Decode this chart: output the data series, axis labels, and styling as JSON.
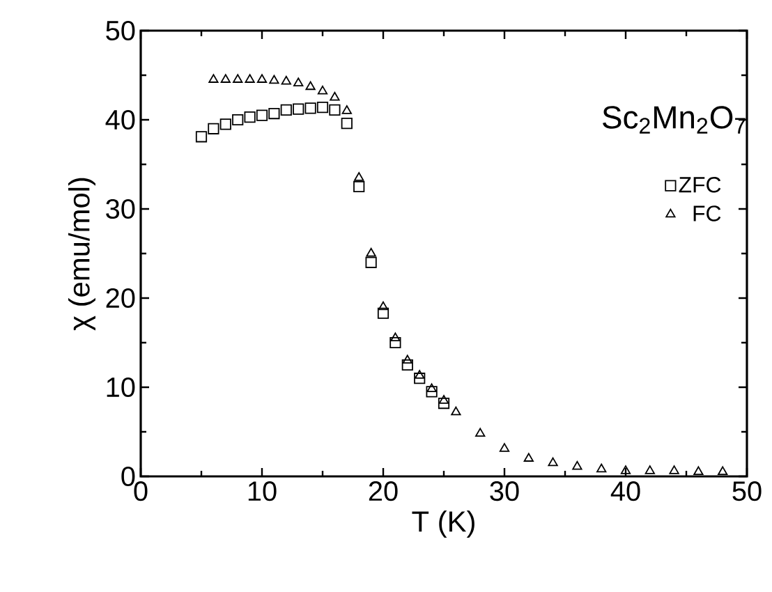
{
  "chart_data": {
    "type": "scatter",
    "xlabel": "T (K)",
    "ylabel": "χ (emu/mol)",
    "annotations": [
      "Sc$_{2}$Mn$_{2}$O$_{7}$"
    ],
    "xlim": [
      0,
      50
    ],
    "ylim": [
      0,
      50
    ],
    "xticks": [
      0,
      10,
      20,
      30,
      40,
      50
    ],
    "yticks": [
      0,
      10,
      20,
      30,
      40,
      50
    ],
    "legend": "right",
    "grid": false,
    "series": [
      {
        "name": "ZFC",
        "color": "#000000",
        "marker": "square",
        "x": [
          5,
          6,
          7,
          8,
          9,
          10,
          11,
          12,
          13,
          14,
          15,
          16,
          17,
          18,
          19,
          20,
          21,
          22,
          23,
          24,
          25
        ],
        "values": [
          38.1,
          39.0,
          39.5,
          40.0,
          40.3,
          40.5,
          40.7,
          41.1,
          41.2,
          41.3,
          41.4,
          41.1,
          39.6,
          32.5,
          24,
          18.3,
          15,
          12.5,
          11,
          9.5,
          8.2
        ]
      },
      {
        "name": "FC",
        "color": "#000000",
        "marker": "triangle",
        "x": [
          6,
          7,
          8,
          9,
          10,
          11,
          12,
          13,
          14,
          15,
          16,
          17,
          18,
          19,
          20,
          21,
          22,
          23,
          24,
          25,
          26,
          28,
          30,
          32,
          34,
          36,
          38,
          40,
          42,
          44,
          46,
          48
        ],
        "values": [
          44.5,
          44.5,
          44.5,
          44.5,
          44.5,
          44.4,
          44.3,
          44.1,
          43.7,
          43.2,
          42.5,
          41.0,
          33.5,
          25,
          19,
          15.5,
          13,
          11.3,
          9.8,
          8.5,
          7.2,
          4.8,
          3.1,
          2.0,
          1.5,
          1.1,
          0.8,
          0.6,
          0.6,
          0.6,
          0.5,
          0.5
        ]
      }
    ]
  }
}
